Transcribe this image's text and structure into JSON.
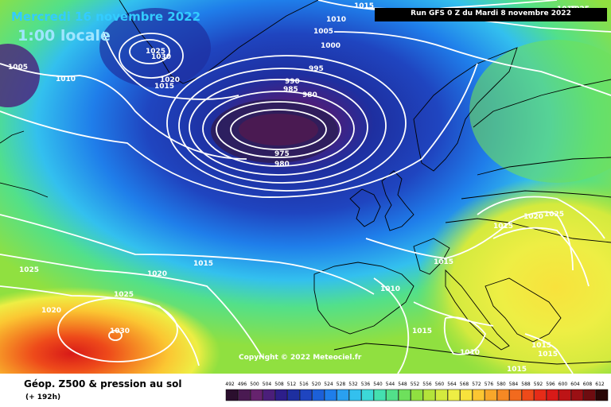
{
  "header": {
    "date": "Mercredi 16 novembre 2022",
    "time": "1:00 locale",
    "run": "Run GFS 0 Z du Mardi 8 novembre 2022",
    "copyright": "Copyright © 2022 Meteociel.fr"
  },
  "footer": {
    "title": "Géop. Z500 & pression au sol",
    "subtitle": "(+ 192h)"
  },
  "legend": {
    "values": [
      "492",
      "496",
      "500",
      "504",
      "508",
      "512",
      "516",
      "520",
      "524",
      "528",
      "532",
      "536",
      "540",
      "544",
      "548",
      "552",
      "556",
      "560",
      "564",
      "568",
      "572",
      "576",
      "580",
      "584",
      "588",
      "592",
      "596",
      "600",
      "604",
      "608",
      "612"
    ],
    "colors": [
      "#2b0f2e",
      "#4a1a52",
      "#66236e",
      "#4b1e7a",
      "#2d1e8a",
      "#1e2fa0",
      "#1f45c0",
      "#1c60d8",
      "#1f7eea",
      "#2aa0f0",
      "#33c0ee",
      "#3cd8d8",
      "#44e0b0",
      "#52e08a",
      "#6ee05c",
      "#90e040",
      "#b4e43a",
      "#d4ea3e",
      "#eeee44",
      "#f8e23c",
      "#fbc632",
      "#f8a72a",
      "#f58924",
      "#f26a1e",
      "#ee4a1a",
      "#e62c18",
      "#d81a18",
      "#bd1416",
      "#9a1014",
      "#6e0c10",
      "#2a0606"
    ]
  },
  "isobars": [
    {
      "value": "1010",
      "label": "1010"
    },
    {
      "value": "1005",
      "label": "1005"
    },
    {
      "value": "1000",
      "label": "1000"
    },
    {
      "value": "995",
      "label": "995"
    },
    {
      "value": "990",
      "label": "990"
    },
    {
      "value": "985",
      "label": "985"
    },
    {
      "value": "980",
      "label": "980"
    },
    {
      "value": "975",
      "label": "975"
    },
    {
      "value": "980",
      "label": "980"
    },
    {
      "value": "1015",
      "label": "1015"
    },
    {
      "value": "1025",
      "label": "1025"
    },
    {
      "value": "1030",
      "label": "1030"
    },
    {
      "value": "1020",
      "label": "1020"
    },
    {
      "value": "1015",
      "label": "1015"
    },
    {
      "value": "1005",
      "label": "1005"
    },
    {
      "value": "1010",
      "label": "1010"
    },
    {
      "value": "1025",
      "label": "1025"
    },
    {
      "value": "1015",
      "label": "1015"
    },
    {
      "value": "1020",
      "label": "1020"
    },
    {
      "value": "1025",
      "label": "1025"
    },
    {
      "value": "1020",
      "label": "1020"
    },
    {
      "value": "1030",
      "label": "1030"
    },
    {
      "value": "1015",
      "label": "1015"
    },
    {
      "value": "1020",
      "label": "1020"
    },
    {
      "value": "1025",
      "label": "1025"
    },
    {
      "value": "1015",
      "label": "1015"
    },
    {
      "value": "1015",
      "label": "1015"
    },
    {
      "value": "1010",
      "label": "1010"
    },
    {
      "value": "1015",
      "label": "1015"
    },
    {
      "value": "1010",
      "label": "1010"
    },
    {
      "value": "1015",
      "label": "1015"
    },
    {
      "value": "1015",
      "label": "1015"
    },
    {
      "value": "1015",
      "label": "1015"
    },
    {
      "value": "1025",
      "label": "1025"
    }
  ]
}
